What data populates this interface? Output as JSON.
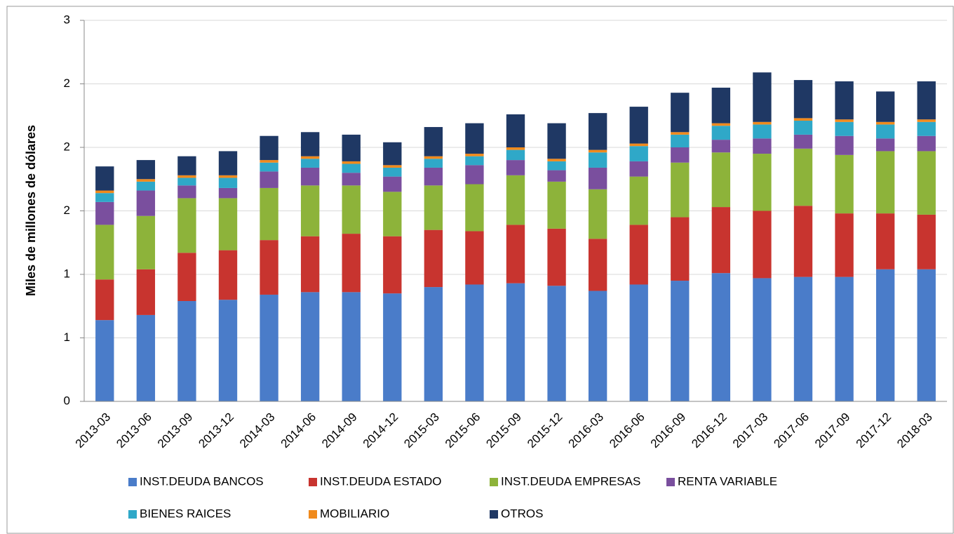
{
  "chart_data": {
    "type": "stacked_bar",
    "y_label": "Miles de millones de dólares",
    "categories": [
      "2013-03",
      "2013-06",
      "2013-09",
      "2013-12",
      "2014-03",
      "2014-06",
      "2014-09",
      "2014-12",
      "2015-03",
      "2015-06",
      "2015-09",
      "2015-12",
      "2016-03",
      "2016-06",
      "2016-09",
      "2016-12",
      "2017-03",
      "2017-06",
      "2017-09",
      "2017-12",
      "2018-03"
    ],
    "series": [
      {
        "name": "INST.DEUDA BANCOS",
        "color": "#4a7cc9",
        "values": [
          0.64,
          0.68,
          0.79,
          0.8,
          0.84,
          0.86,
          0.86,
          0.85,
          0.9,
          0.92,
          0.93,
          0.91,
          0.87,
          0.92,
          0.95,
          1.01,
          0.97,
          0.98,
          0.98,
          1.04,
          1.04
        ]
      },
      {
        "name": "INST.DEUDA ESTADO",
        "color": "#c8342f",
        "values": [
          0.32,
          0.36,
          0.38,
          0.39,
          0.43,
          0.44,
          0.46,
          0.45,
          0.45,
          0.42,
          0.46,
          0.45,
          0.41,
          0.47,
          0.5,
          0.52,
          0.53,
          0.56,
          0.5,
          0.44,
          0.43
        ]
      },
      {
        "name": "INST.DEUDA EMPRESAS",
        "color": "#8db33a",
        "values": [
          0.43,
          0.42,
          0.43,
          0.41,
          0.41,
          0.4,
          0.38,
          0.35,
          0.35,
          0.37,
          0.39,
          0.37,
          0.39,
          0.38,
          0.43,
          0.43,
          0.45,
          0.45,
          0.46,
          0.49,
          0.5
        ]
      },
      {
        "name": "RENTA VARIABLE",
        "color": "#7a4f9e",
        "values": [
          0.18,
          0.2,
          0.1,
          0.08,
          0.13,
          0.14,
          0.1,
          0.12,
          0.14,
          0.15,
          0.12,
          0.09,
          0.17,
          0.12,
          0.12,
          0.1,
          0.12,
          0.11,
          0.15,
          0.1,
          0.12
        ]
      },
      {
        "name": "BIENES RAICES",
        "color": "#2fa8c8",
        "values": [
          0.07,
          0.07,
          0.06,
          0.08,
          0.07,
          0.07,
          0.07,
          0.07,
          0.07,
          0.07,
          0.08,
          0.07,
          0.12,
          0.12,
          0.1,
          0.11,
          0.11,
          0.11,
          0.11,
          0.11,
          0.11
        ]
      },
      {
        "name": "MOBILIARIO",
        "color": "#f08a1c",
        "values": [
          0.02,
          0.02,
          0.02,
          0.02,
          0.02,
          0.02,
          0.02,
          0.02,
          0.02,
          0.02,
          0.02,
          0.02,
          0.02,
          0.02,
          0.02,
          0.02,
          0.02,
          0.02,
          0.02,
          0.02,
          0.02
        ]
      },
      {
        "name": "OTROS",
        "color": "#1f3864",
        "values": [
          0.19,
          0.15,
          0.15,
          0.19,
          0.19,
          0.19,
          0.21,
          0.18,
          0.23,
          0.24,
          0.26,
          0.28,
          0.29,
          0.29,
          0.31,
          0.28,
          0.39,
          0.3,
          0.3,
          0.24,
          0.3
        ]
      }
    ],
    "ylim": [
      0,
      3
    ],
    "yticks": [
      0,
      {
        "value": 0.5,
        "label": "1"
      },
      1,
      {
        "value": 1.5,
        "label": "2"
      },
      2,
      {
        "value": 2.5,
        "label": "2"
      },
      3
    ],
    "grid": true
  }
}
